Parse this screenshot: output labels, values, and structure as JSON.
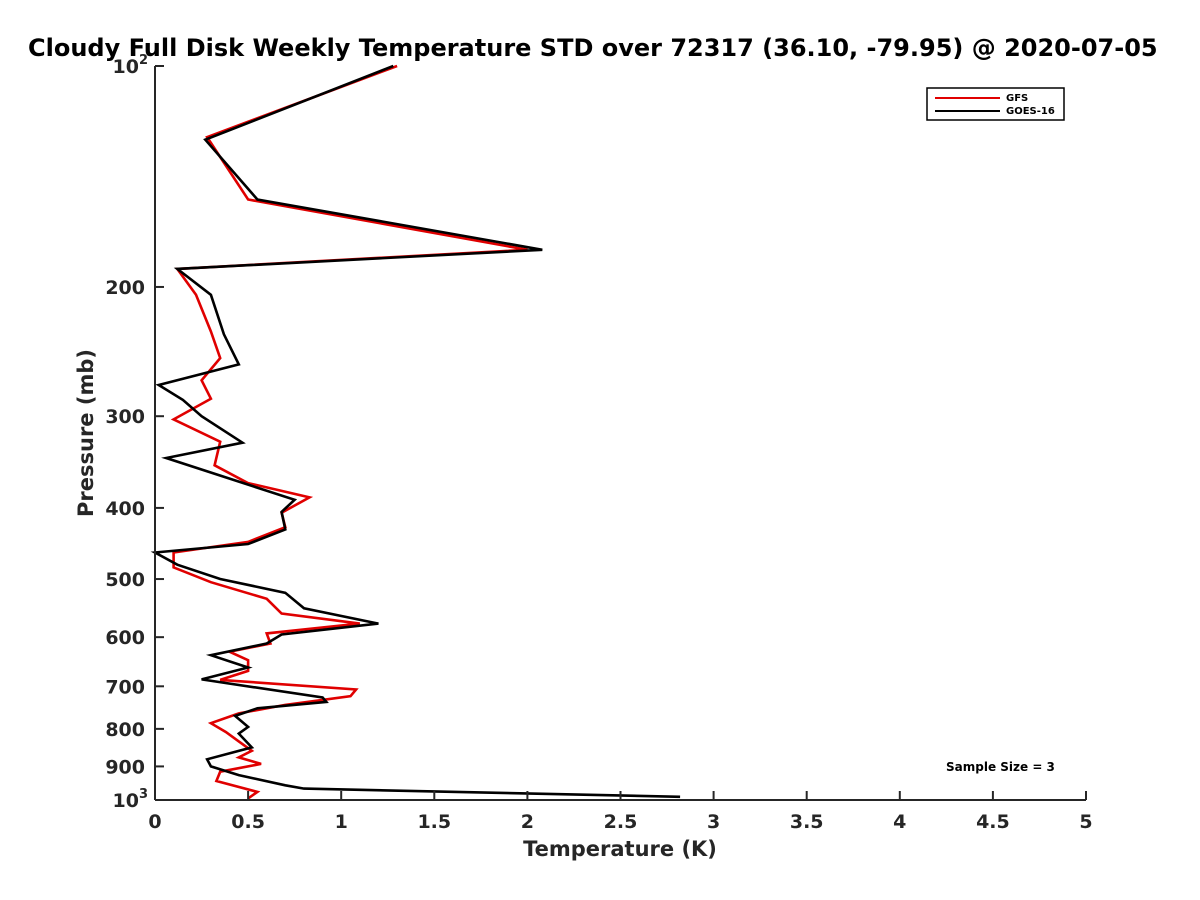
{
  "chart_data": {
    "type": "line",
    "title": "Cloudy Full Disk Weekly Temperature STD over 72317 (36.10, -79.95) @ 2020-07-05",
    "xlabel": "Temperature (K)",
    "ylabel": "Pressure (mb)",
    "xlim": [
      0,
      5
    ],
    "ylim": [
      100,
      1000
    ],
    "y_scale": "log",
    "y_reversed": true,
    "grid": false,
    "legend_position": "top-right",
    "x_ticks": [
      "0",
      "0.5",
      "1",
      "1.5",
      "2",
      "2.5",
      "3",
      "3.5",
      "4",
      "4.5",
      "5"
    ],
    "x_tick_values": [
      0,
      0.5,
      1,
      1.5,
      2,
      2.5,
      3,
      3.5,
      4,
      4.5,
      5
    ],
    "y_ticks": [
      {
        "value": 100,
        "label": "10",
        "sup": "2"
      },
      {
        "value": 200,
        "label": "200",
        "sup": ""
      },
      {
        "value": 300,
        "label": "300",
        "sup": ""
      },
      {
        "value": 400,
        "label": "400",
        "sup": ""
      },
      {
        "value": 500,
        "label": "500",
        "sup": ""
      },
      {
        "value": 600,
        "label": "600",
        "sup": ""
      },
      {
        "value": 700,
        "label": "700",
        "sup": ""
      },
      {
        "value": 800,
        "label": "800",
        "sup": ""
      },
      {
        "value": 900,
        "label": "900",
        "sup": ""
      },
      {
        "value": 1000,
        "label": "10",
        "sup": "3"
      }
    ],
    "annotation": "Sample Size = 3",
    "series": [
      {
        "name": "GFS",
        "color": "#e00000",
        "points": [
          [
            1.3,
            100
          ],
          [
            0.28,
            125
          ],
          [
            0.5,
            152
          ],
          [
            2.0,
            178
          ],
          [
            0.12,
            189
          ],
          [
            0.22,
            205
          ],
          [
            0.3,
            230
          ],
          [
            0.35,
            250
          ],
          [
            0.25,
            268
          ],
          [
            0.3,
            284
          ],
          [
            0.1,
            303
          ],
          [
            0.35,
            325
          ],
          [
            0.32,
            350
          ],
          [
            0.5,
            370
          ],
          [
            0.83,
            387
          ],
          [
            0.68,
            406
          ],
          [
            0.7,
            425
          ],
          [
            0.5,
            445
          ],
          [
            0.1,
            460
          ],
          [
            0.1,
            482
          ],
          [
            0.3,
            505
          ],
          [
            0.6,
            532
          ],
          [
            0.68,
            557
          ],
          [
            1.1,
            575
          ],
          [
            0.6,
            593
          ],
          [
            0.62,
            612
          ],
          [
            0.4,
            628
          ],
          [
            0.5,
            645
          ],
          [
            0.5,
            667
          ],
          [
            0.35,
            686
          ],
          [
            1.08,
            707
          ],
          [
            1.05,
            722
          ],
          [
            0.7,
            742
          ],
          [
            0.45,
            762
          ],
          [
            0.3,
            786
          ],
          [
            0.38,
            808
          ],
          [
            0.45,
            832
          ],
          [
            0.52,
            857
          ],
          [
            0.45,
            875
          ],
          [
            0.57,
            893
          ],
          [
            0.35,
            915
          ],
          [
            0.33,
            942
          ],
          [
            0.55,
            975
          ],
          [
            0.5,
            995
          ]
        ]
      },
      {
        "name": "GOES-16",
        "color": "#000000",
        "points": [
          [
            1.28,
            100
          ],
          [
            0.27,
            126
          ],
          [
            0.55,
            152
          ],
          [
            2.08,
            178
          ],
          [
            0.12,
            189
          ],
          [
            0.3,
            205
          ],
          [
            0.37,
            232
          ],
          [
            0.45,
            255
          ],
          [
            0.02,
            272
          ],
          [
            0.15,
            285
          ],
          [
            0.25,
            300
          ],
          [
            0.47,
            326
          ],
          [
            0.06,
            342
          ],
          [
            0.75,
            390
          ],
          [
            0.68,
            405
          ],
          [
            0.7,
            428
          ],
          [
            0.5,
            448
          ],
          [
            0.0,
            460
          ],
          [
            0.12,
            478
          ],
          [
            0.35,
            500
          ],
          [
            0.7,
            522
          ],
          [
            0.8,
            548
          ],
          [
            1.2,
            575
          ],
          [
            0.68,
            595
          ],
          [
            0.6,
            612
          ],
          [
            0.3,
            635
          ],
          [
            0.5,
            660
          ],
          [
            0.25,
            685
          ],
          [
            0.9,
            725
          ],
          [
            0.92,
            735
          ],
          [
            0.55,
            750
          ],
          [
            0.43,
            768
          ],
          [
            0.5,
            795
          ],
          [
            0.45,
            812
          ],
          [
            0.52,
            848
          ],
          [
            0.28,
            880
          ],
          [
            0.3,
            900
          ],
          [
            0.45,
            925
          ],
          [
            0.7,
            955
          ],
          [
            0.8,
            965
          ],
          [
            2.82,
            990
          ]
        ]
      }
    ]
  }
}
